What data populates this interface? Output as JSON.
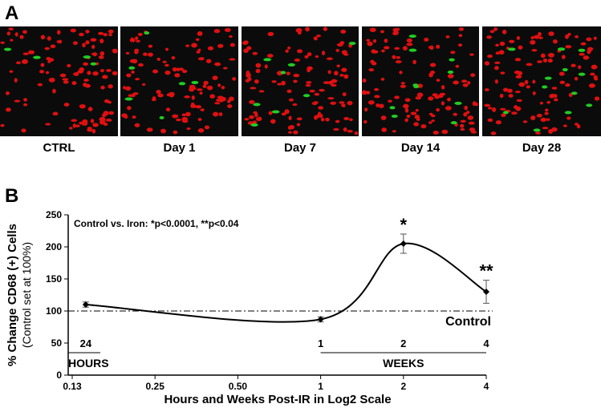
{
  "panel_a": {
    "label": "A",
    "images": [
      "CTRL",
      "Day 1",
      "Day 7",
      "Day 14",
      "Day 28"
    ]
  },
  "chart_data": {
    "type": "line",
    "panel_label": "B",
    "annotation": "Control vs. Iron: *p<0.0001, **p<0.04",
    "ylabel": "% Change CD68 (+) Cells",
    "ylabel_sub": "(Control set at 100%)",
    "xlabel": "Hours and Weeks Post-IR in Log2 Scale",
    "xscale": "log2",
    "x": [
      0.14,
      1,
      2,
      4
    ],
    "series": [
      {
        "color": "#000000",
        "values": [
          110,
          87,
          205,
          130
        ],
        "errors": [
          4,
          4,
          15,
          18
        ]
      }
    ],
    "significance": [
      null,
      null,
      "*",
      "**"
    ],
    "reference_line": {
      "label": "Control",
      "value": 100
    },
    "hours_scale": {
      "label": "HOURS",
      "tick": "24"
    },
    "weeks_scale": {
      "label": "WEEKS",
      "ticks": [
        "1",
        "2",
        "4"
      ]
    },
    "xlim": [
      0.125,
      4
    ],
    "xticks": [
      {
        "value": 0.125,
        "label": "0.13"
      },
      0.25,
      {
        "value": 0.5,
        "label": "0.50"
      },
      1,
      2,
      4
    ],
    "ylim": [
      0,
      250
    ],
    "yticks": [
      0,
      50,
      100,
      150,
      200,
      250
    ]
  }
}
